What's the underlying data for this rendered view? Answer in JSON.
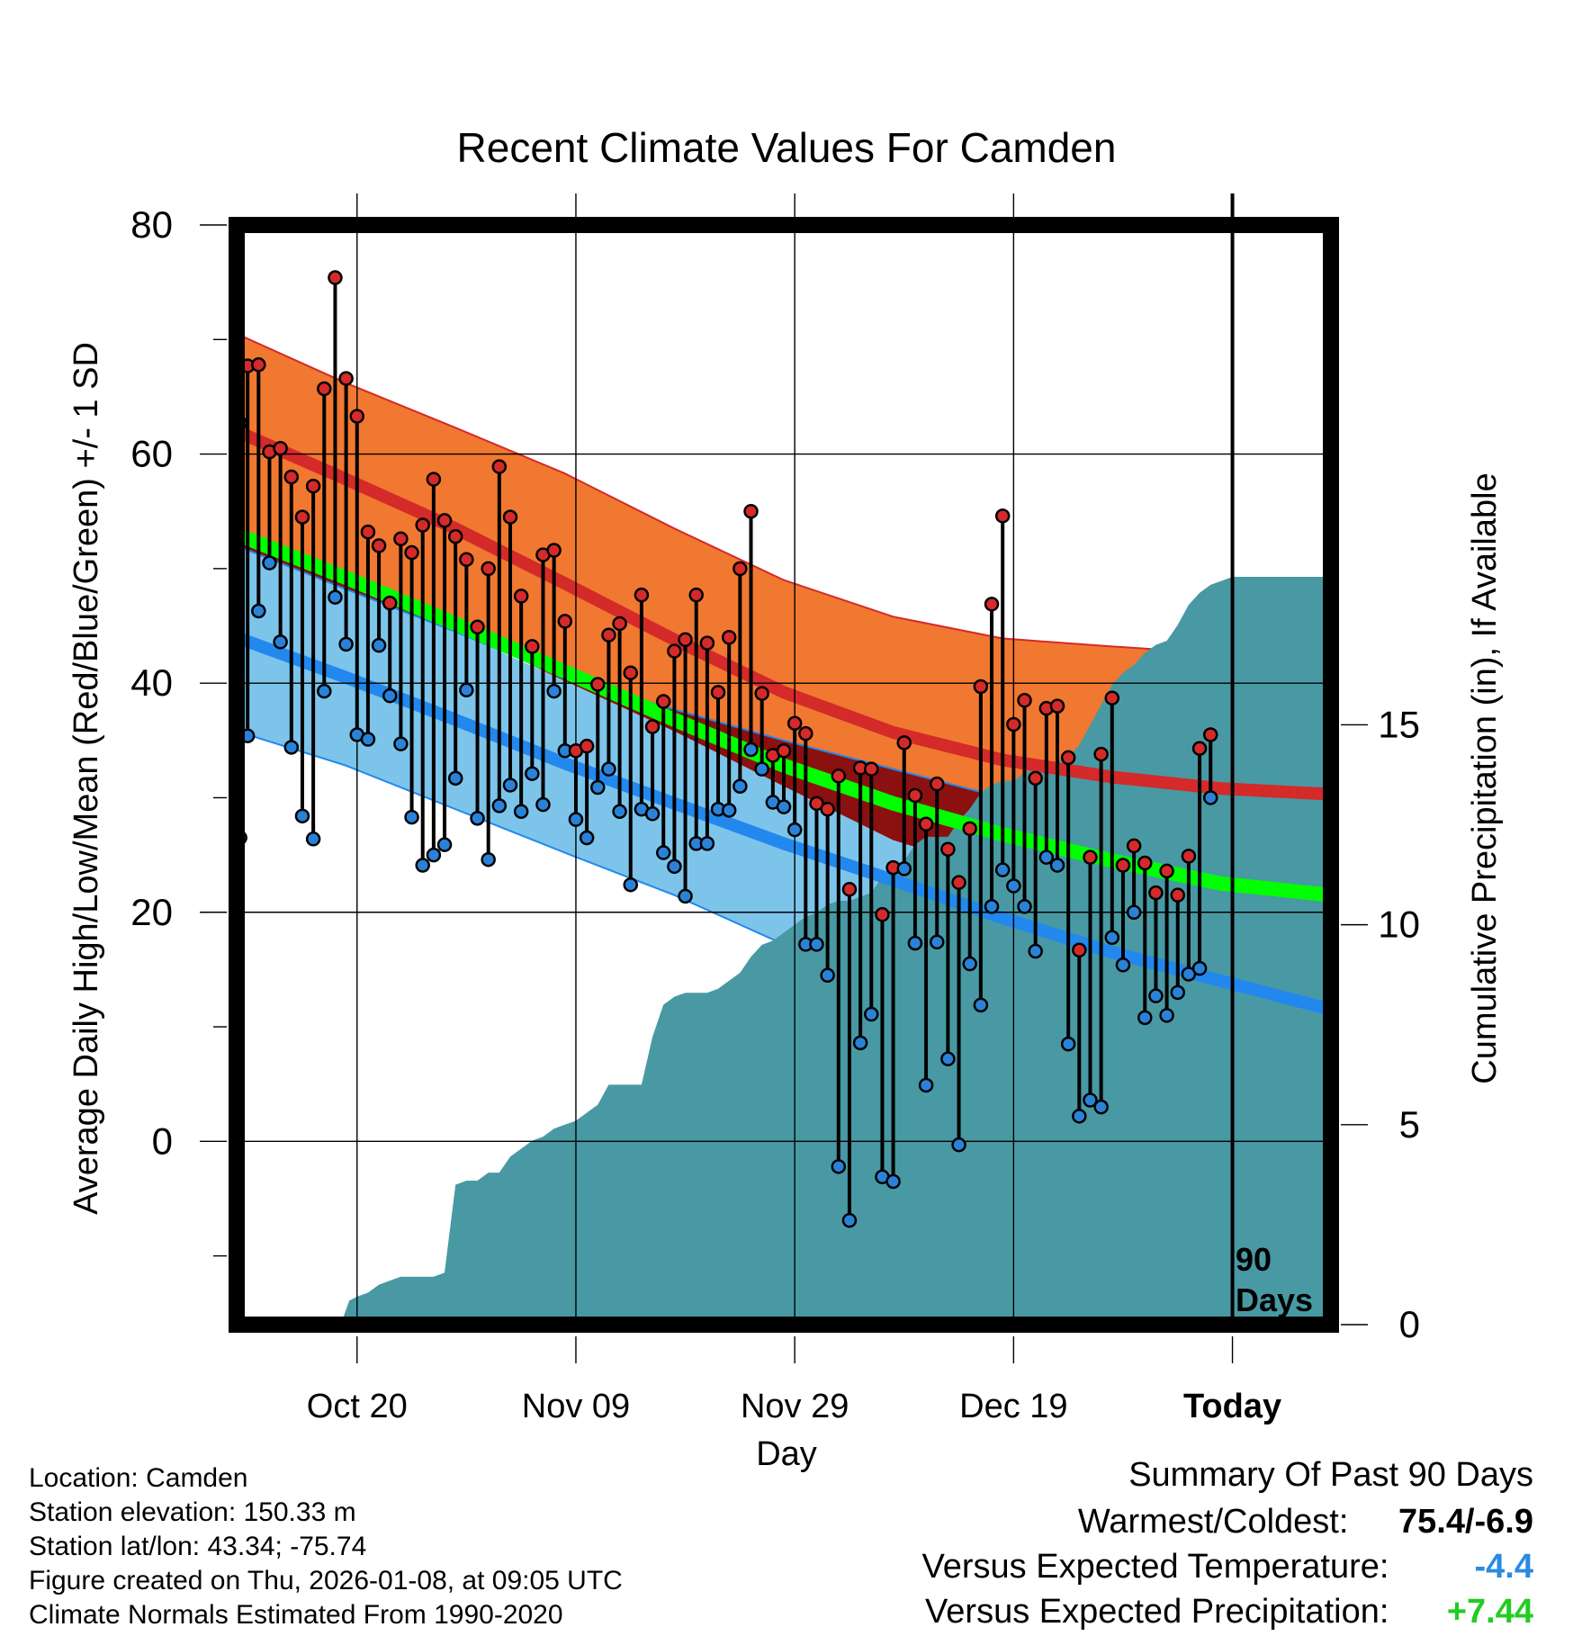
{
  "chart_data": {
    "type": "line",
    "title": "Recent Climate Values For Camden",
    "xlabel": "Day",
    "ylabel_left": "Average Daily High/Low/Mean (Red/Blue/Green) +/- 1 SD",
    "ylabel_right": "Cumulative Precipitation (in), If Available",
    "ylim_left": [
      -16,
      80
    ],
    "ylim_right": [
      0,
      27.5
    ],
    "xlim_days": [
      0,
      100
    ],
    "y_ticks_left": [
      0,
      20,
      40,
      60,
      80
    ],
    "y_ticks_right": [
      0,
      5,
      10,
      15
    ],
    "x_ticks": [
      {
        "day": 11,
        "label": "Oct 20"
      },
      {
        "day": 31,
        "label": "Nov 09"
      },
      {
        "day": 51,
        "label": "Nov 29"
      },
      {
        "day": 71,
        "label": "Dec 19"
      },
      {
        "day": 91,
        "label": "Today"
      }
    ],
    "today_day": 91,
    "today_label_line1": "90",
    "today_label_line2": "Days",
    "colors": {
      "high_band": "#f07830",
      "high_mean": "#d42a2a",
      "low_band": "#7dc4ea",
      "low_mean": "#2288ee",
      "avg_mean": "#00ff00",
      "overlap": "#8b1010",
      "precip": "#4899a3",
      "high_dot": "#d42a2a",
      "low_dot": "#2a82d8"
    },
    "normals": {
      "days": [
        0,
        10,
        20,
        30,
        40,
        50,
        60,
        70,
        80,
        90,
        100
      ],
      "high_mean": [
        62.0,
        57.8,
        53.5,
        48.7,
        43.8,
        39.2,
        35.7,
        33.3,
        31.8,
        30.8,
        30.3
      ],
      "high_sd_upper": [
        70.5,
        66.2,
        62.3,
        58.3,
        53.5,
        49.0,
        45.8,
        43.9,
        43.2,
        42.6,
        42.3
      ],
      "high_sd_lower": [
        53.0,
        49.3,
        45.0,
        40.2,
        35.8,
        31.0,
        26.3,
        23.3,
        21.0,
        20.0,
        19.5
      ],
      "low_mean": [
        44.0,
        40.5,
        36.8,
        33.0,
        29.5,
        26.0,
        22.8,
        19.5,
        16.5,
        14.0,
        11.5
      ],
      "low_sd_upper": [
        52.0,
        48.2,
        44.5,
        40.5,
        37.7,
        35.0,
        32.5,
        30.0,
        28.3,
        26.8,
        26.5
      ],
      "low_sd_lower": [
        35.8,
        32.8,
        29.0,
        25.2,
        21.5,
        17.2,
        13.2,
        9.2,
        4.8,
        0.8,
        -3.0
      ],
      "avg_mean": [
        53.0,
        49.2,
        45.2,
        41.0,
        36.8,
        32.8,
        29.5,
        26.8,
        24.5,
        22.5,
        21.5
      ]
    },
    "precip_cumulative": {
      "days": [
        0,
        9.5,
        10.3,
        11,
        12,
        13,
        14,
        15,
        16,
        17,
        18,
        19,
        20,
        21,
        22,
        23,
        24,
        25,
        26,
        27,
        28,
        29,
        30,
        31,
        32,
        33,
        34,
        35,
        36,
        37,
        38,
        39,
        40,
        41,
        42,
        43,
        44,
        45,
        46,
        47,
        48,
        49,
        50,
        51,
        52,
        53,
        54,
        55,
        56,
        57,
        58,
        59,
        60,
        61,
        62,
        63,
        64,
        65,
        66,
        67,
        68,
        69,
        70,
        71,
        72,
        73,
        74,
        75,
        76,
        77,
        78,
        79,
        80,
        81,
        82,
        83,
        84,
        85,
        86,
        87,
        88,
        89,
        90,
        91,
        92,
        100
      ],
      "values": [
        0,
        0,
        0.6,
        0.7,
        0.8,
        1.0,
        1.1,
        1.2,
        1.2,
        1.2,
        1.2,
        1.3,
        3.5,
        3.6,
        3.6,
        3.8,
        3.8,
        4.2,
        4.4,
        4.6,
        4.7,
        4.9,
        5.0,
        5.1,
        5.3,
        5.5,
        6.0,
        6.0,
        6.0,
        6.0,
        7.2,
        8.0,
        8.2,
        8.3,
        8.3,
        8.3,
        8.4,
        8.6,
        8.8,
        9.2,
        9.5,
        9.6,
        9.8,
        10.0,
        10.2,
        10.3,
        10.5,
        10.6,
        10.6,
        10.7,
        10.8,
        11.2,
        11.4,
        11.6,
        12.0,
        12.2,
        12.2,
        12.2,
        12.6,
        12.9,
        13.3,
        13.5,
        13.6,
        13.6,
        13.8,
        13.9,
        13.9,
        14.1,
        14.2,
        14.5,
        15.0,
        15.5,
        16.0,
        16.3,
        16.5,
        16.8,
        17.0,
        17.1,
        17.5,
        18.0,
        18.3,
        18.5,
        18.6,
        18.7,
        18.7,
        18.7
      ],
      "ylim": [
        0,
        27.5
      ]
    },
    "observations": {
      "days": [
        0.3,
        1,
        2,
        3,
        4,
        5,
        6,
        7,
        8,
        9,
        10,
        11,
        12,
        13,
        14,
        15,
        16,
        17,
        18,
        19,
        20,
        21,
        22,
        23,
        24,
        25,
        26,
        27,
        28,
        29,
        30,
        31,
        32,
        33,
        34,
        35,
        36,
        37,
        38,
        39,
        40,
        41,
        42,
        43,
        44,
        45,
        46,
        47,
        48,
        49,
        50,
        51,
        52,
        53,
        54,
        55,
        56,
        57,
        58,
        59,
        60,
        61,
        62,
        63,
        64,
        65,
        66,
        67,
        68,
        69,
        70,
        71,
        72,
        73,
        74,
        75,
        76,
        77,
        78,
        79,
        80,
        81,
        82,
        83,
        84,
        85,
        86,
        87,
        88,
        89,
        90
      ],
      "highs": [
        62.7,
        67.7,
        67.8,
        60.2,
        60.5,
        58.0,
        54.5,
        57.2,
        65.7,
        75.4,
        66.6,
        63.3,
        53.2,
        52.0,
        47.0,
        52.6,
        51.4,
        53.8,
        57.8,
        54.2,
        52.8,
        50.8,
        44.9,
        50.0,
        58.9,
        54.5,
        47.6,
        43.2,
        51.2,
        51.6,
        45.4,
        34.1,
        34.5,
        39.9,
        44.2,
        45.2,
        40.9,
        47.7,
        36.2,
        38.4,
        42.8,
        43.8,
        47.7,
        43.5,
        39.2,
        44.0,
        50.0,
        55.0,
        39.1,
        33.7,
        34.1,
        36.5,
        35.6,
        29.5,
        29.0,
        31.9,
        22.0,
        32.6,
        32.5,
        19.8,
        23.9,
        34.8,
        30.2,
        27.7,
        31.2,
        25.5,
        22.6,
        27.3,
        39.7,
        46.9,
        54.6,
        36.4,
        38.5,
        31.7,
        37.8,
        38.0,
        33.5,
        16.7,
        24.8,
        33.8,
        38.7,
        24.1,
        25.8,
        24.3,
        21.7,
        23.6,
        21.5,
        24.9,
        34.3,
        35.5
      ],
      "lows": [
        26.5,
        35.4,
        46.3,
        50.5,
        43.6,
        34.4,
        28.4,
        26.4,
        39.3,
        47.5,
        43.4,
        35.5,
        35.1,
        43.3,
        38.9,
        34.7,
        28.3,
        24.1,
        25.0,
        25.9,
        31.7,
        39.4,
        28.2,
        24.6,
        29.3,
        31.1,
        28.8,
        32.1,
        29.4,
        39.3,
        34.1,
        28.1,
        26.5,
        30.9,
        32.5,
        28.8,
        22.4,
        29.0,
        28.6,
        25.2,
        24.0,
        21.4,
        26.0,
        26.0,
        29.0,
        28.9,
        31.0,
        34.2,
        32.5,
        29.6,
        29.2,
        27.2,
        17.2,
        17.2,
        14.5,
        -2.2,
        -6.9,
        8.6,
        11.1,
        -3.1,
        -3.5,
        23.8,
        17.3,
        4.9,
        17.4,
        7.2,
        -0.3,
        15.5,
        11.9,
        20.5,
        23.7,
        22.3,
        20.5,
        16.6,
        24.8,
        24.1,
        8.5,
        2.2,
        3.6,
        3.0,
        17.8,
        15.4,
        20.0,
        10.8,
        12.7,
        11.0,
        13.0,
        14.6,
        15.1,
        30.0
      ]
    }
  },
  "info": {
    "location": "Location: Camden",
    "elevation": "Station elevation: 150.33 m",
    "latlon": "Station lat/lon: 43.34; -75.74",
    "created": "Figure created on Thu, 2026-01-08, at 09:05 UTC",
    "normals": "Climate Normals Estimated From 1990-2020"
  },
  "summary": {
    "title": "Summary Of Past 90 Days",
    "warmest_label": "Warmest/Coldest:",
    "warmest_value": "75.4/-6.9",
    "temp_label": "Versus Expected Temperature:",
    "temp_value": "-4.4",
    "temp_color": "#2a8ae0",
    "precip_label": "Versus Expected Precipitation:",
    "precip_value": "+7.44",
    "precip_color": "#22cc22"
  }
}
